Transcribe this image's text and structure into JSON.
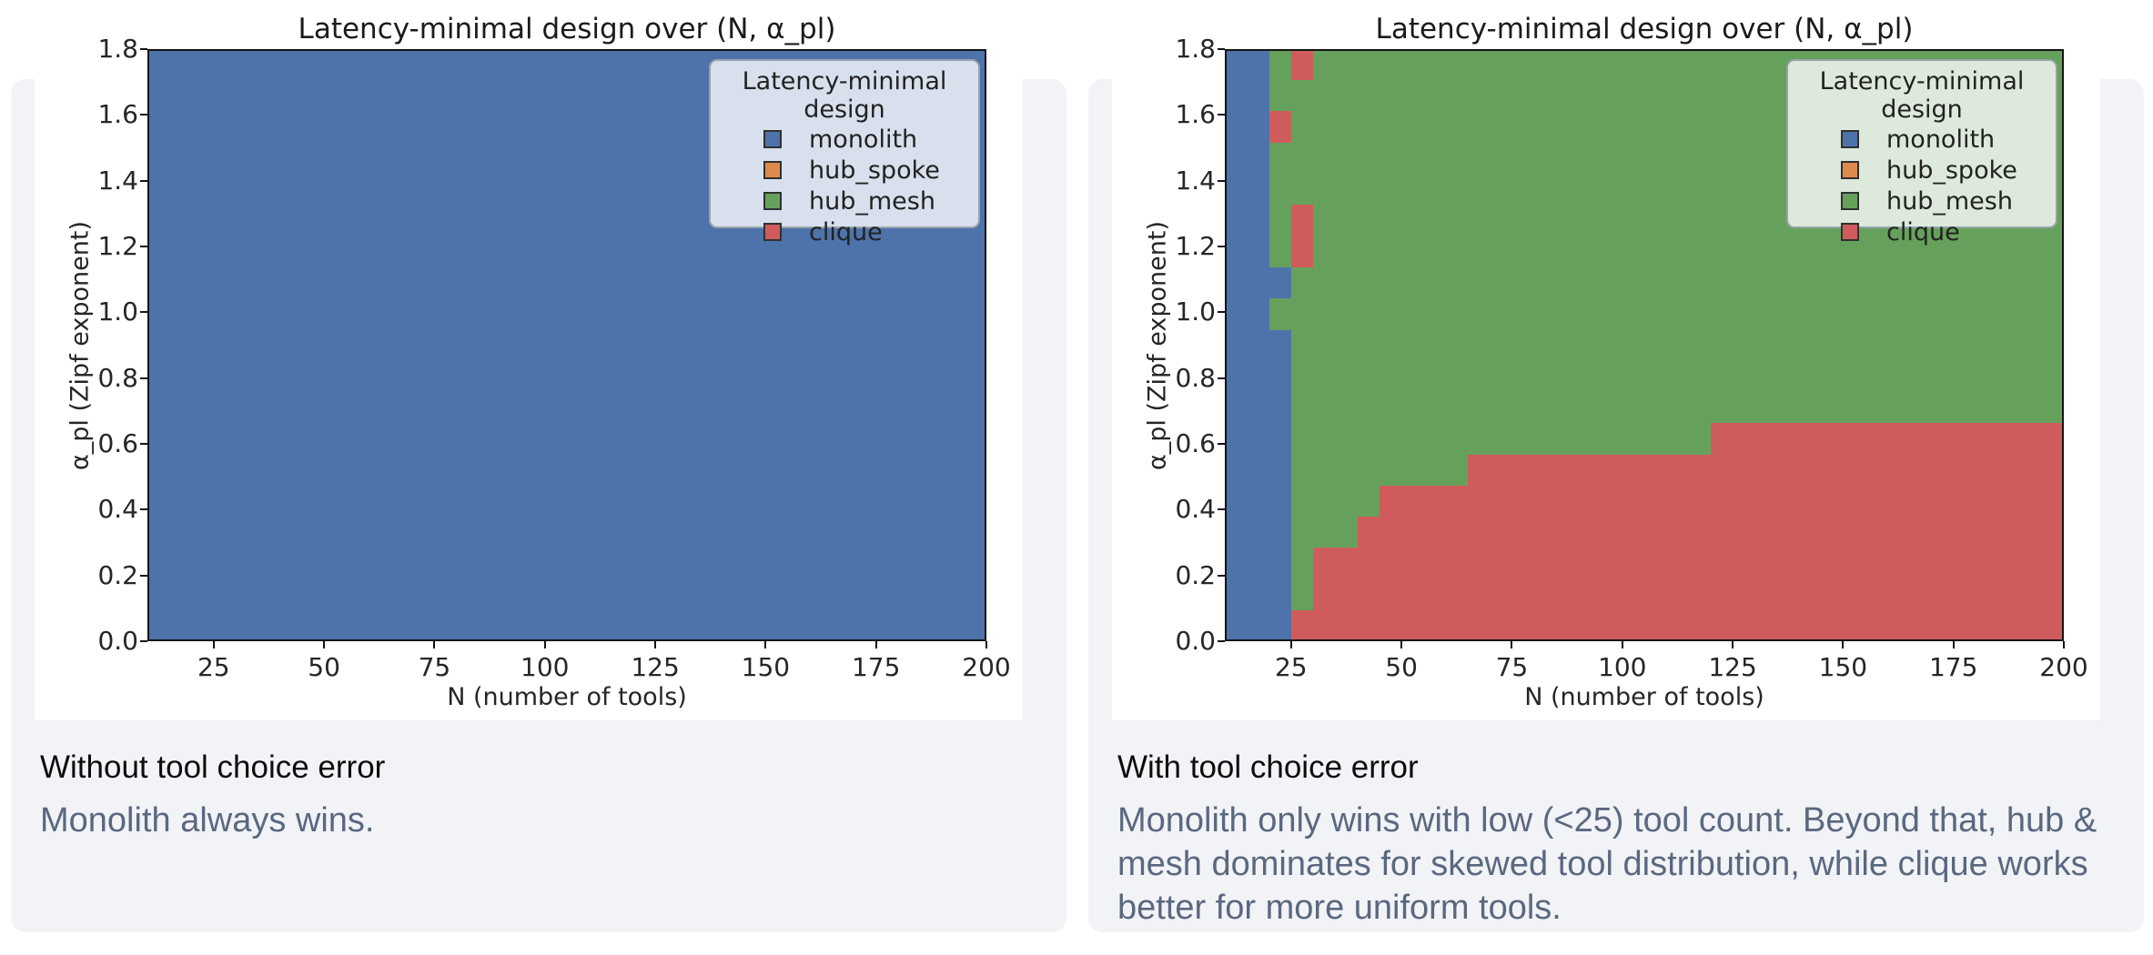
{
  "page": {
    "background": "#ffffff",
    "card_background": "#f2f3f6"
  },
  "designs": {
    "monolith": "#4e73ab",
    "hub_spoke": "#de8a4a",
    "hub_mesh": "#66a15c",
    "clique": "#cf5c5c"
  },
  "legend": {
    "title": "Latency-minimal design",
    "entries": [
      {
        "design": "monolith",
        "label": "monolith"
      },
      {
        "design": "hub_spoke",
        "label": "hub_spoke"
      },
      {
        "design": "hub_mesh",
        "label": "hub_mesh"
      },
      {
        "design": "clique",
        "label": "clique"
      }
    ]
  },
  "chart_data": [
    {
      "type": "heatmap",
      "panel": "left",
      "title": "Latency-minimal design over (N, α_pl)",
      "xlabel": "N (number of tools)",
      "ylabel": "α_pl (Zipf exponent)",
      "xlim": [
        10,
        200
      ],
      "ylim": [
        0,
        1.8
      ],
      "xticks": [
        25,
        50,
        75,
        100,
        125,
        150,
        175,
        200
      ],
      "yticks": [
        0.0,
        0.2,
        0.4,
        0.6,
        0.8,
        1.0,
        1.2,
        1.4,
        1.6,
        1.8
      ],
      "grid": false,
      "legend_position": "upper right",
      "regions": [
        {
          "design": "monolith",
          "n": [
            10,
            200
          ],
          "a": [
            0.0,
            1.8
          ]
        }
      ]
    },
    {
      "type": "heatmap",
      "panel": "right",
      "title": "Latency-minimal design over (N, α_pl)",
      "xlabel": "N (number of tools)",
      "ylabel": "α_pl (Zipf exponent)",
      "xlim": [
        10,
        200
      ],
      "ylim": [
        0,
        1.8
      ],
      "xticks": [
        25,
        50,
        75,
        100,
        125,
        150,
        175,
        200
      ],
      "yticks": [
        0.0,
        0.2,
        0.4,
        0.6,
        0.8,
        1.0,
        1.2,
        1.4,
        1.6,
        1.8
      ],
      "grid": false,
      "legend_position": "upper right",
      "regions": [
        {
          "design": "hub_mesh",
          "n": [
            10,
            200
          ],
          "a": [
            0.0,
            1.8
          ]
        },
        {
          "design": "monolith",
          "n": [
            10,
            20
          ],
          "a": [
            0.0,
            1.8
          ]
        },
        {
          "design": "monolith",
          "n": [
            20,
            25
          ],
          "a": [
            0.0,
            0.947
          ]
        },
        {
          "design": "monolith",
          "n": [
            20,
            25
          ],
          "a": [
            1.042,
            1.137
          ]
        },
        {
          "design": "clique",
          "n": [
            25,
            30
          ],
          "a": [
            0.0,
            0.095
          ]
        },
        {
          "design": "clique",
          "n": [
            30,
            40
          ],
          "a": [
            0.0,
            0.284
          ]
        },
        {
          "design": "clique",
          "n": [
            40,
            45
          ],
          "a": [
            0.0,
            0.379
          ]
        },
        {
          "design": "clique",
          "n": [
            45,
            65
          ],
          "a": [
            0.0,
            0.474
          ]
        },
        {
          "design": "clique",
          "n": [
            65,
            120
          ],
          "a": [
            0.0,
            0.568
          ]
        },
        {
          "design": "clique",
          "n": [
            120,
            200
          ],
          "a": [
            0.0,
            0.663
          ]
        },
        {
          "design": "clique",
          "n": [
            25,
            30
          ],
          "a": [
            1.705,
            1.8
          ]
        },
        {
          "design": "clique",
          "n": [
            20,
            25
          ],
          "a": [
            1.516,
            1.611
          ]
        },
        {
          "design": "clique",
          "n": [
            25,
            30
          ],
          "a": [
            1.137,
            1.326
          ]
        }
      ]
    }
  ],
  "captions": [
    {
      "heading": "Without tool choice error",
      "body": "Monolith always wins."
    },
    {
      "heading": "With tool choice error",
      "body": "Monolith only wins with low (<25) tool count. Beyond that, hub & mesh dominates for skewed tool distribution, while clique works better for more uniform tools."
    }
  ]
}
